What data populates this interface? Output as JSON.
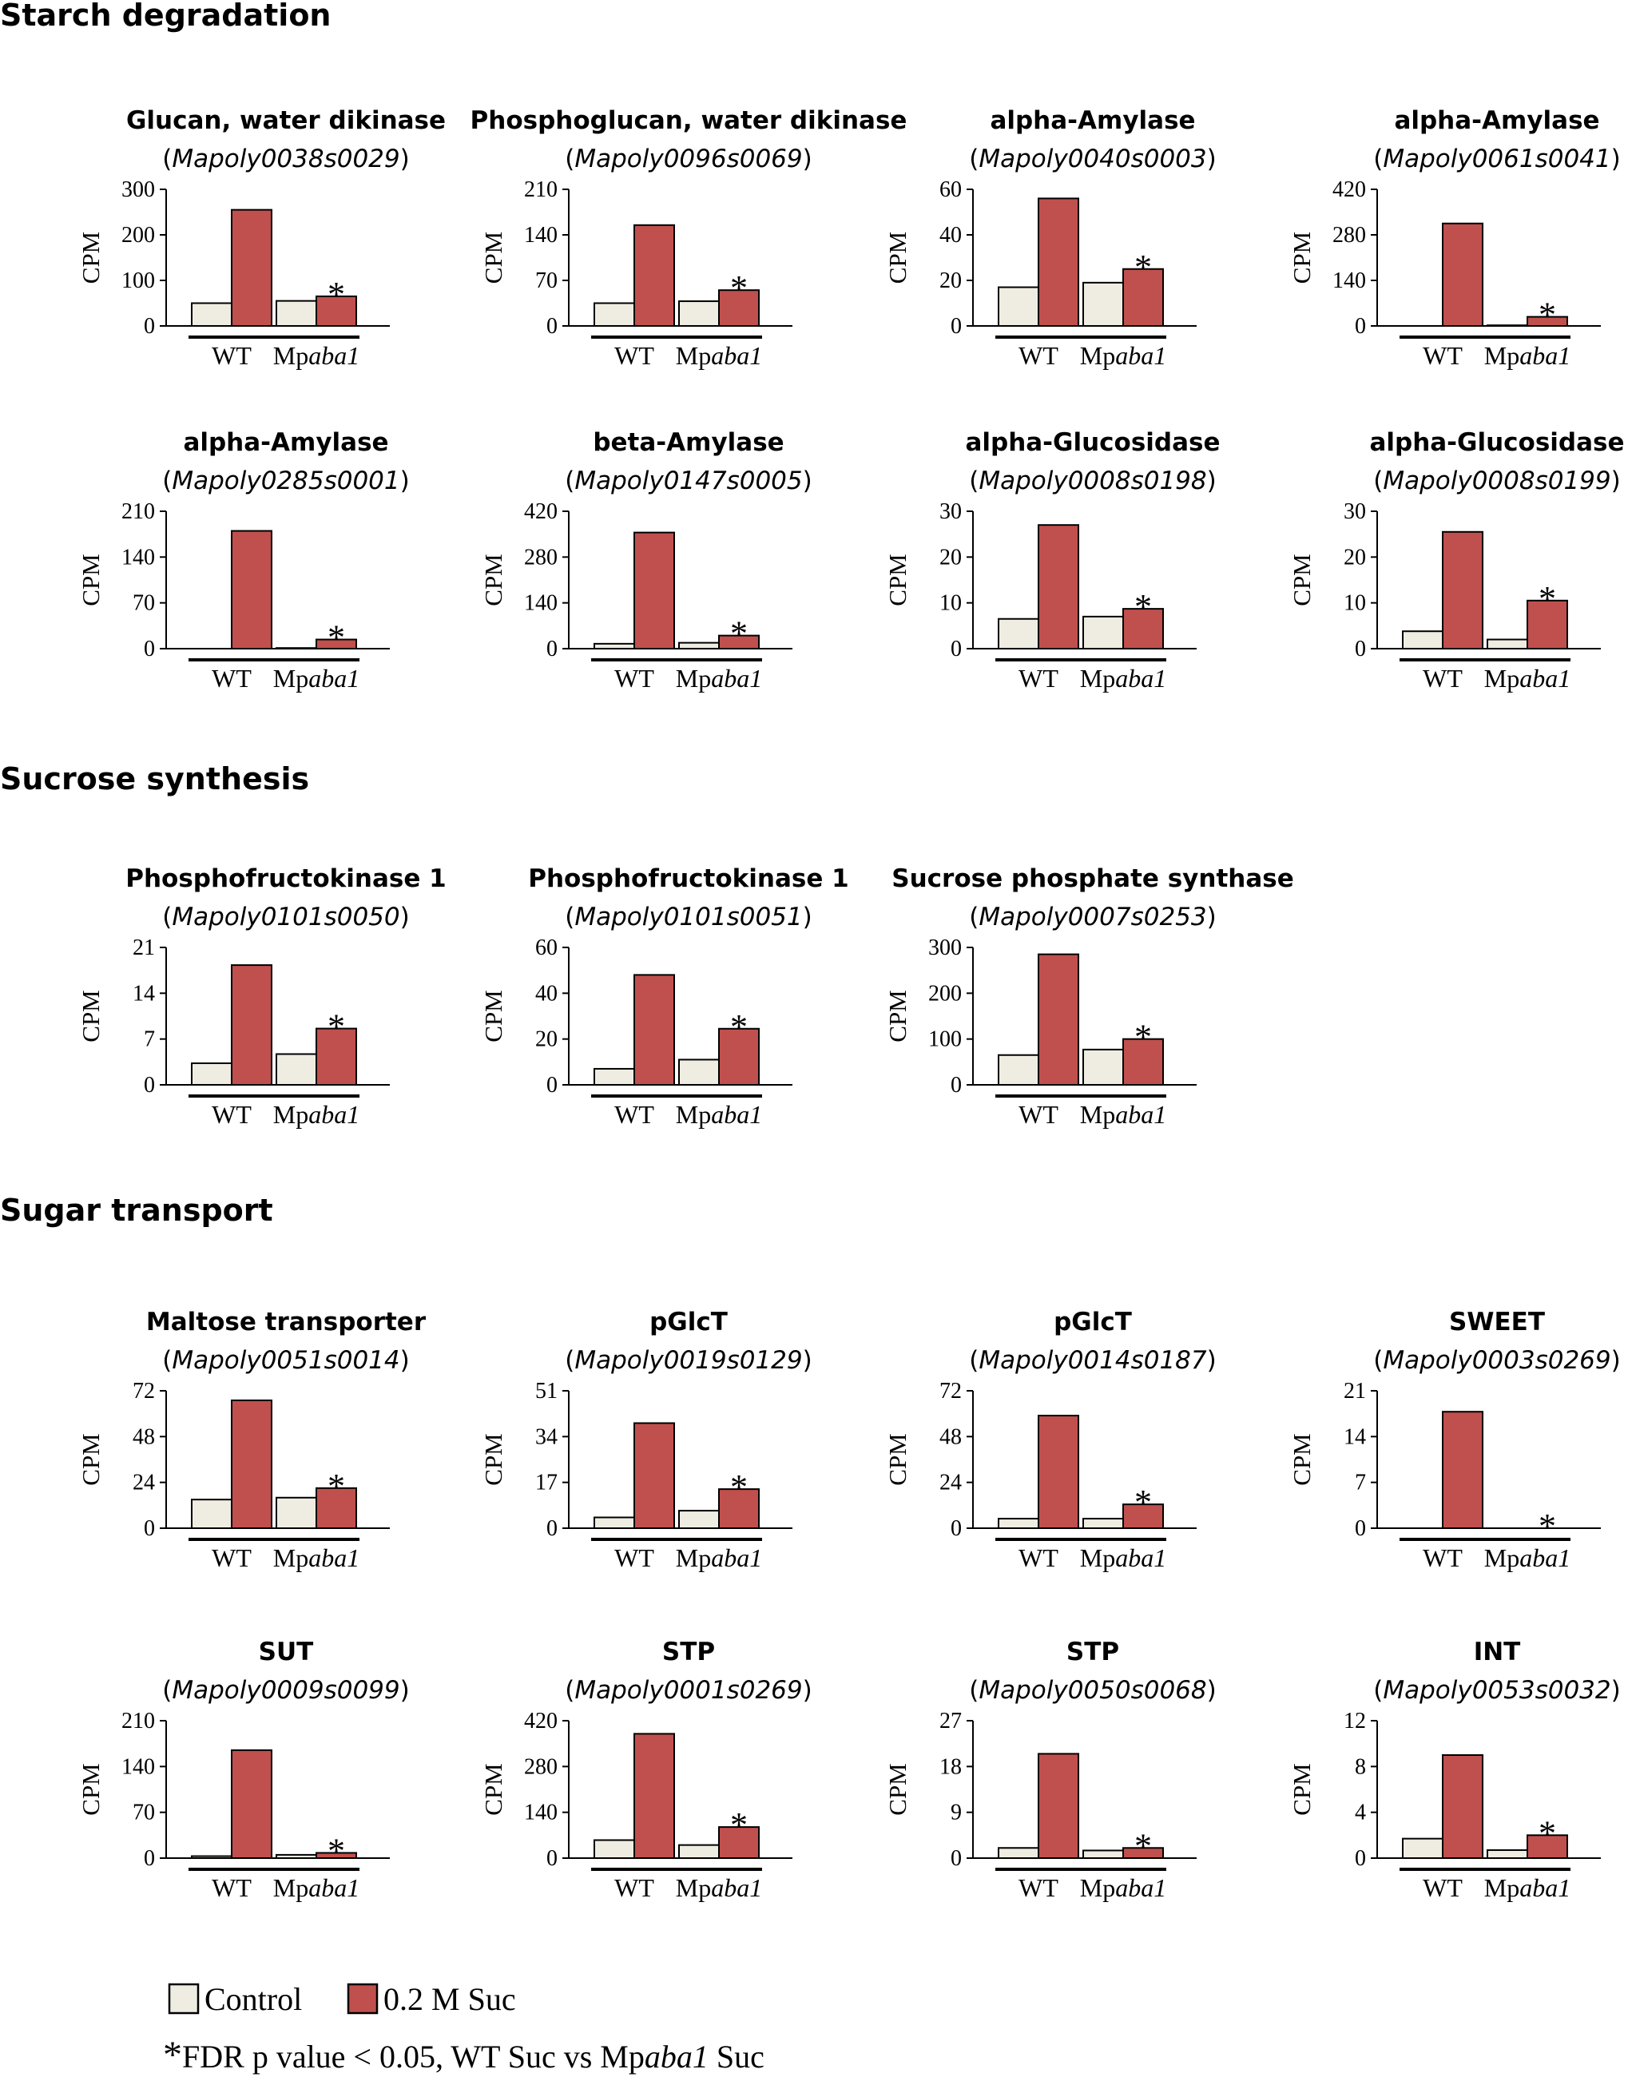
{
  "sections": [
    {
      "title": "Starch degradation"
    },
    {
      "title": "Sucrose synthesis"
    },
    {
      "title": "Sugar transport"
    }
  ],
  "legend": {
    "control_label": "Control",
    "suc_label": "0.2 M Suc",
    "note_star": "*",
    "note_prefix": "FDR p value < 0.05, WT Suc vs Mp",
    "note_italic": "aba1",
    "note_suffix": " Suc"
  },
  "colors": {
    "control": "#efece2",
    "suc": "#c0504d",
    "stroke": "#000000"
  },
  "chart_data": [
    {
      "type": "bar",
      "section": 0,
      "title": "Glucan, water dikinase",
      "gene": "Mapoly0038s0029",
      "ylabel": "CPM",
      "ylim": [
        0,
        300
      ],
      "yticks": [
        0,
        100,
        200,
        300
      ],
      "groups": [
        "WT",
        "Mpaba1"
      ],
      "series": [
        {
          "name": "Control",
          "values": [
            50,
            55
          ]
        },
        {
          "name": "0.2 M Suc",
          "values": [
            255,
            65
          ]
        }
      ],
      "significant": "*"
    },
    {
      "type": "bar",
      "section": 0,
      "title": "Phosphoglucan, water dikinase",
      "gene": "Mapoly0096s0069",
      "ylabel": "CPM",
      "ylim": [
        0,
        210
      ],
      "yticks": [
        0,
        70,
        140,
        210
      ],
      "groups": [
        "WT",
        "Mpaba1"
      ],
      "series": [
        {
          "name": "Control",
          "values": [
            35,
            38
          ]
        },
        {
          "name": "0.2 M Suc",
          "values": [
            155,
            55
          ]
        }
      ],
      "significant": "*"
    },
    {
      "type": "bar",
      "section": 0,
      "title": "alpha-Amylase",
      "gene": "Mapoly0040s0003",
      "ylabel": "CPM",
      "ylim": [
        0,
        60
      ],
      "yticks": [
        0,
        20,
        40,
        60
      ],
      "groups": [
        "WT",
        "Mpaba1"
      ],
      "series": [
        {
          "name": "Control",
          "values": [
            17,
            19
          ]
        },
        {
          "name": "0.2 M Suc",
          "values": [
            56,
            25
          ]
        }
      ],
      "significant": "*"
    },
    {
      "type": "bar",
      "section": 0,
      "title": "alpha-Amylase",
      "gene": "Mapoly0061s0041",
      "ylabel": "CPM",
      "ylim": [
        0,
        420
      ],
      "yticks": [
        0,
        140,
        280,
        420
      ],
      "groups": [
        "WT",
        "Mpaba1"
      ],
      "series": [
        {
          "name": "Control",
          "values": [
            0,
            2
          ]
        },
        {
          "name": "0.2 M Suc",
          "values": [
            315,
            28
          ]
        }
      ],
      "significant": "*"
    },
    {
      "type": "bar",
      "section": 0,
      "title": "alpha-Amylase",
      "gene": "Mapoly0285s0001",
      "ylabel": "CPM",
      "ylim": [
        0,
        210
      ],
      "yticks": [
        0,
        70,
        140,
        210
      ],
      "groups": [
        "WT",
        "Mpaba1"
      ],
      "series": [
        {
          "name": "Control",
          "values": [
            0,
            1
          ]
        },
        {
          "name": "0.2 M Suc",
          "values": [
            180,
            14
          ]
        }
      ],
      "significant": "*"
    },
    {
      "type": "bar",
      "section": 0,
      "title": "beta-Amylase",
      "gene": "Mapoly0147s0005",
      "ylabel": "CPM",
      "ylim": [
        0,
        420
      ],
      "yticks": [
        0,
        140,
        280,
        420
      ],
      "groups": [
        "WT",
        "Mpaba1"
      ],
      "series": [
        {
          "name": "Control",
          "values": [
            15,
            18
          ]
        },
        {
          "name": "0.2 M Suc",
          "values": [
            355,
            40
          ]
        }
      ],
      "significant": "*"
    },
    {
      "type": "bar",
      "section": 0,
      "title": "alpha-Glucosidase",
      "gene": "Mapoly0008s0198",
      "ylabel": "CPM",
      "ylim": [
        0,
        30
      ],
      "yticks": [
        0,
        10,
        20,
        30
      ],
      "groups": [
        "WT",
        "Mpaba1"
      ],
      "series": [
        {
          "name": "Control",
          "values": [
            6.5,
            7
          ]
        },
        {
          "name": "0.2 M Suc",
          "values": [
            27,
            8.7
          ]
        }
      ],
      "significant": "*"
    },
    {
      "type": "bar",
      "section": 0,
      "title": "alpha-Glucosidase",
      "gene": "Mapoly0008s0199",
      "ylabel": "CPM",
      "ylim": [
        0,
        30
      ],
      "yticks": [
        0,
        10,
        20,
        30
      ],
      "groups": [
        "WT",
        "Mpaba1"
      ],
      "series": [
        {
          "name": "Control",
          "values": [
            3.8,
            2
          ]
        },
        {
          "name": "0.2 M Suc",
          "values": [
            25.5,
            10.5
          ]
        }
      ],
      "significant": "*"
    },
    {
      "type": "bar",
      "section": 1,
      "title": "Phosphofructokinase 1",
      "gene": "Mapoly0101s0050",
      "ylabel": "CPM",
      "ylim": [
        0,
        21
      ],
      "yticks": [
        0,
        7,
        14,
        21
      ],
      "groups": [
        "WT",
        "Mpaba1"
      ],
      "series": [
        {
          "name": "Control",
          "values": [
            3.3,
            4.7
          ]
        },
        {
          "name": "0.2 M Suc",
          "values": [
            18.3,
            8.6
          ]
        }
      ],
      "significant": "*"
    },
    {
      "type": "bar",
      "section": 1,
      "title": "Phosphofructokinase 1",
      "gene": "Mapoly0101s0051",
      "ylabel": "CPM",
      "ylim": [
        0,
        60
      ],
      "yticks": [
        0,
        20,
        40,
        60
      ],
      "groups": [
        "WT",
        "Mpaba1"
      ],
      "series": [
        {
          "name": "Control",
          "values": [
            7,
            11
          ]
        },
        {
          "name": "0.2 M Suc",
          "values": [
            48,
            24.5
          ]
        }
      ],
      "significant": "*"
    },
    {
      "type": "bar",
      "section": 1,
      "title": "Sucrose phosphate synthase",
      "gene": "Mapoly0007s0253",
      "ylabel": "CPM",
      "ylim": [
        0,
        300
      ],
      "yticks": [
        0,
        100,
        200,
        300
      ],
      "groups": [
        "WT",
        "Mpaba1"
      ],
      "series": [
        {
          "name": "Control",
          "values": [
            65,
            77
          ]
        },
        {
          "name": "0.2 M Suc",
          "values": [
            285,
            100
          ]
        }
      ],
      "significant": "*"
    },
    {
      "type": "bar",
      "section": 2,
      "title": "Maltose transporter",
      "gene": "Mapoly0051s0014",
      "ylabel": "CPM",
      "ylim": [
        0,
        72
      ],
      "yticks": [
        0,
        24,
        48,
        72
      ],
      "groups": [
        "WT",
        "Mpaba1"
      ],
      "series": [
        {
          "name": "Control",
          "values": [
            15,
            16
          ]
        },
        {
          "name": "0.2 M Suc",
          "values": [
            67,
            21
          ]
        }
      ],
      "significant": "*"
    },
    {
      "type": "bar",
      "section": 2,
      "title": "pGlcT",
      "gene": "Mapoly0019s0129",
      "ylabel": "CPM",
      "ylim": [
        0,
        51
      ],
      "yticks": [
        0,
        17,
        34,
        51
      ],
      "groups": [
        "WT",
        "Mpaba1"
      ],
      "series": [
        {
          "name": "Control",
          "values": [
            4,
            6.5
          ]
        },
        {
          "name": "0.2 M Suc",
          "values": [
            39,
            14.5
          ]
        }
      ],
      "significant": "*"
    },
    {
      "type": "bar",
      "section": 2,
      "title": "pGlcT",
      "gene": "Mapoly0014s0187",
      "ylabel": "CPM",
      "ylim": [
        0,
        72
      ],
      "yticks": [
        0,
        24,
        48,
        72
      ],
      "groups": [
        "WT",
        "Mpaba1"
      ],
      "series": [
        {
          "name": "Control",
          "values": [
            5,
            5
          ]
        },
        {
          "name": "0.2 M Suc",
          "values": [
            59,
            12.5
          ]
        }
      ],
      "significant": "*"
    },
    {
      "type": "bar",
      "section": 2,
      "title": "SWEET",
      "gene": "Mapoly0003s0269",
      "ylabel": "CPM",
      "ylim": [
        0,
        21
      ],
      "yticks": [
        0,
        7,
        14,
        21
      ],
      "groups": [
        "WT",
        "Mpaba1"
      ],
      "series": [
        {
          "name": "Control",
          "values": [
            0,
            0
          ]
        },
        {
          "name": "0.2 M Suc",
          "values": [
            17.8,
            0
          ]
        }
      ],
      "significant": "*"
    },
    {
      "type": "bar",
      "section": 2,
      "title": "SUT",
      "gene": "Mapoly0009s0099",
      "ylabel": "CPM",
      "ylim": [
        0,
        210
      ],
      "yticks": [
        0,
        70,
        140,
        210
      ],
      "groups": [
        "WT",
        "Mpaba1"
      ],
      "series": [
        {
          "name": "Control",
          "values": [
            3,
            5
          ]
        },
        {
          "name": "0.2 M Suc",
          "values": [
            165,
            8
          ]
        }
      ],
      "significant": "*"
    },
    {
      "type": "bar",
      "section": 2,
      "title": "STP",
      "gene": "Mapoly0001s0269",
      "ylabel": "CPM",
      "ylim": [
        0,
        420
      ],
      "yticks": [
        0,
        140,
        280,
        420
      ],
      "groups": [
        "WT",
        "Mpaba1"
      ],
      "series": [
        {
          "name": "Control",
          "values": [
            55,
            40
          ]
        },
        {
          "name": "0.2 M Suc",
          "values": [
            380,
            95
          ]
        }
      ],
      "significant": "*"
    },
    {
      "type": "bar",
      "section": 2,
      "title": "STP",
      "gene": "Mapoly0050s0068",
      "ylabel": "CPM",
      "ylim": [
        0,
        27
      ],
      "yticks": [
        0,
        9,
        18,
        27
      ],
      "groups": [
        "WT",
        "Mpaba1"
      ],
      "series": [
        {
          "name": "Control",
          "values": [
            2,
            1.5
          ]
        },
        {
          "name": "0.2 M Suc",
          "values": [
            20.5,
            2
          ]
        }
      ],
      "significant": "*"
    },
    {
      "type": "bar",
      "section": 2,
      "title": "INT",
      "gene": "Mapoly0053s0032",
      "ylabel": "CPM",
      "ylim": [
        0,
        12
      ],
      "yticks": [
        0,
        4,
        8,
        12
      ],
      "groups": [
        "WT",
        "Mpaba1"
      ],
      "series": [
        {
          "name": "Control",
          "values": [
            1.7,
            0.7
          ]
        },
        {
          "name": "0.2 M Suc",
          "values": [
            9,
            2
          ]
        }
      ],
      "significant": "*"
    }
  ]
}
